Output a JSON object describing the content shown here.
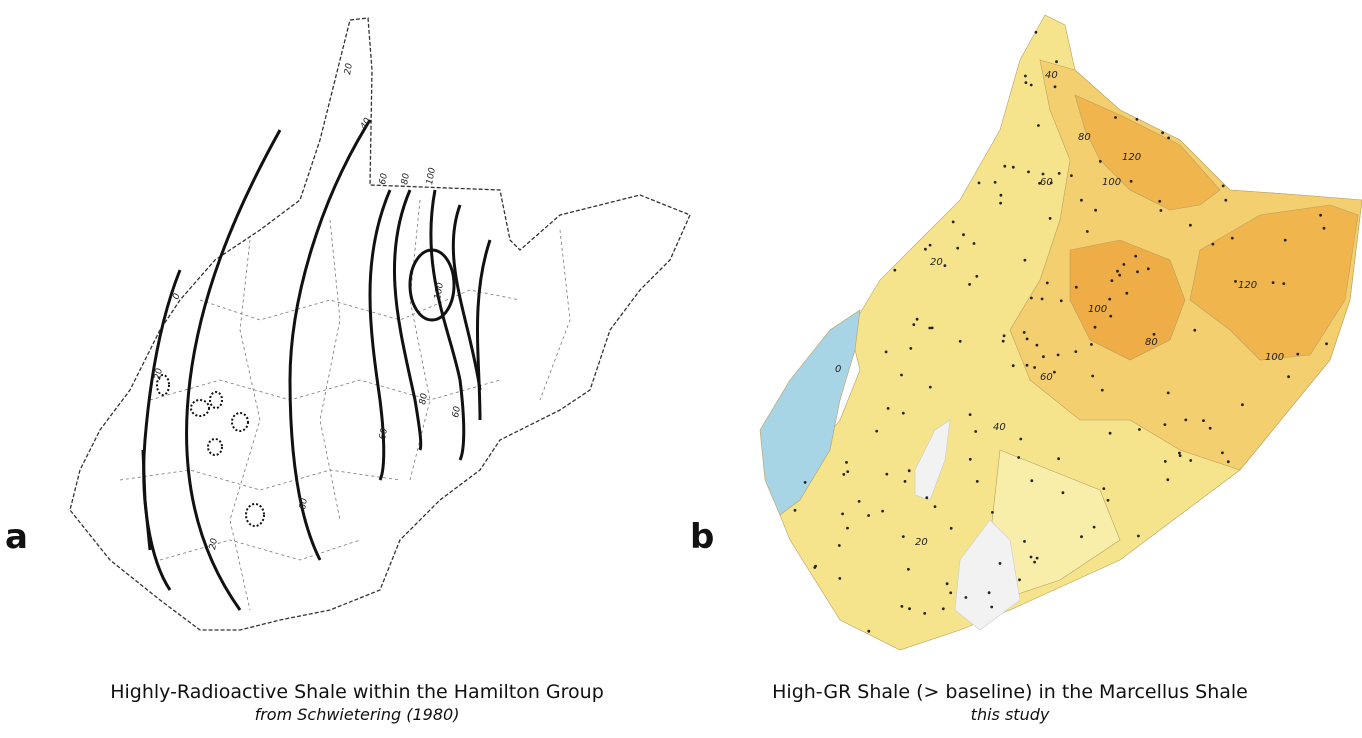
{
  "panels": [
    {
      "letter": "a",
      "caption": "Highly-Radioactive Shale within the Hamilton Group",
      "source": "from Schwietering (1980)",
      "contour_labels": [
        "20",
        "40",
        "60",
        "80",
        "100",
        "0",
        "20",
        "100",
        "60",
        "80",
        "60",
        "20",
        "60"
      ]
    },
    {
      "letter": "b",
      "caption": "High-GR Shale (> baseline) in the Marcellus Shale",
      "source": "this study",
      "contour_labels": [
        "40",
        "80",
        "120",
        "60",
        "100",
        "20",
        "100",
        "120",
        "80",
        "100",
        "0",
        "60",
        "40",
        "20"
      ]
    }
  ]
}
